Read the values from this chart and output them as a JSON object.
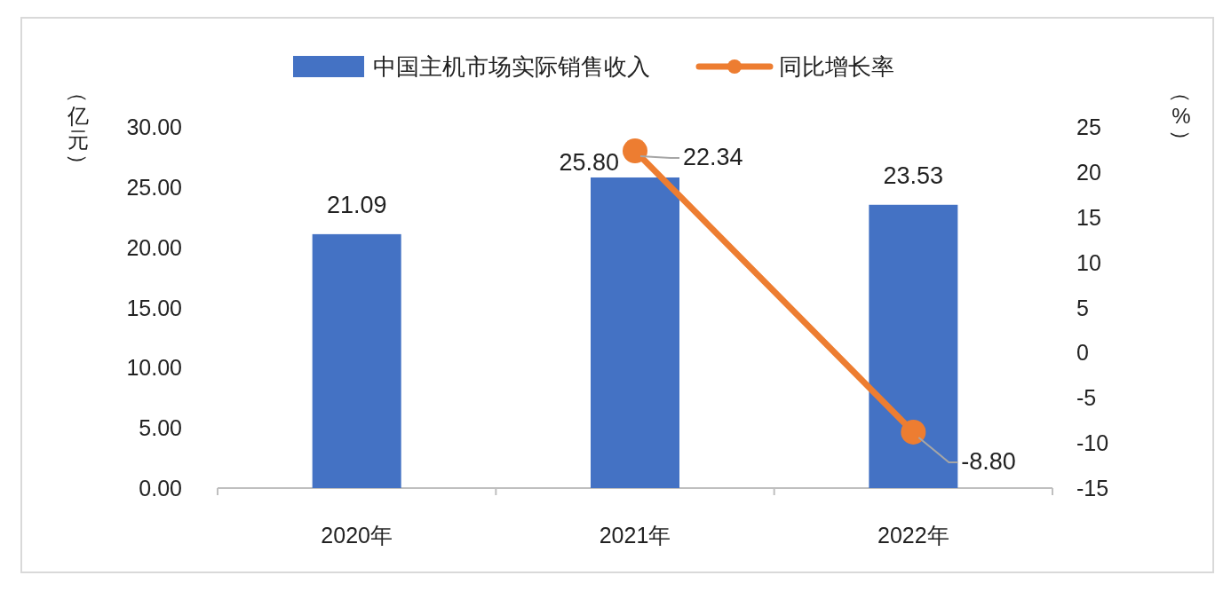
{
  "chart_data": {
    "type": "bar",
    "categories": [
      "2020年",
      "2021年",
      "2022年"
    ],
    "series": [
      {
        "name": "中国主机市场实际销售收入",
        "type": "bar",
        "color": "#4472c4",
        "values": [
          21.09,
          25.8,
          23.53
        ],
        "value_labels": [
          "21.09",
          "25.80",
          "23.53"
        ]
      },
      {
        "name": "同比增长率",
        "type": "line",
        "axis": "y2",
        "color": "#ed7d31",
        "marker": "circle",
        "values": [
          null,
          22.34,
          -8.8
        ],
        "value_labels": [
          null,
          "22.34",
          "-8.80"
        ]
      }
    ],
    "ylabel": "（亿元）",
    "y2label": "（%）",
    "ylim": [
      0,
      30
    ],
    "yticks": [
      {
        "value": 0,
        "label": "0.00"
      },
      {
        "value": 5,
        "label": "5.00"
      },
      {
        "value": 10,
        "label": "10.00"
      },
      {
        "value": 15,
        "label": "15.00"
      },
      {
        "value": 20,
        "label": "20.00"
      },
      {
        "value": 25,
        "label": "25.00"
      },
      {
        "value": 30,
        "label": "30.00"
      }
    ],
    "y2lim": [
      -15,
      25
    ],
    "y2ticks": [
      -15,
      -10,
      -5,
      0,
      5,
      10,
      15,
      20,
      25
    ],
    "legend": "top",
    "grid": false
  }
}
